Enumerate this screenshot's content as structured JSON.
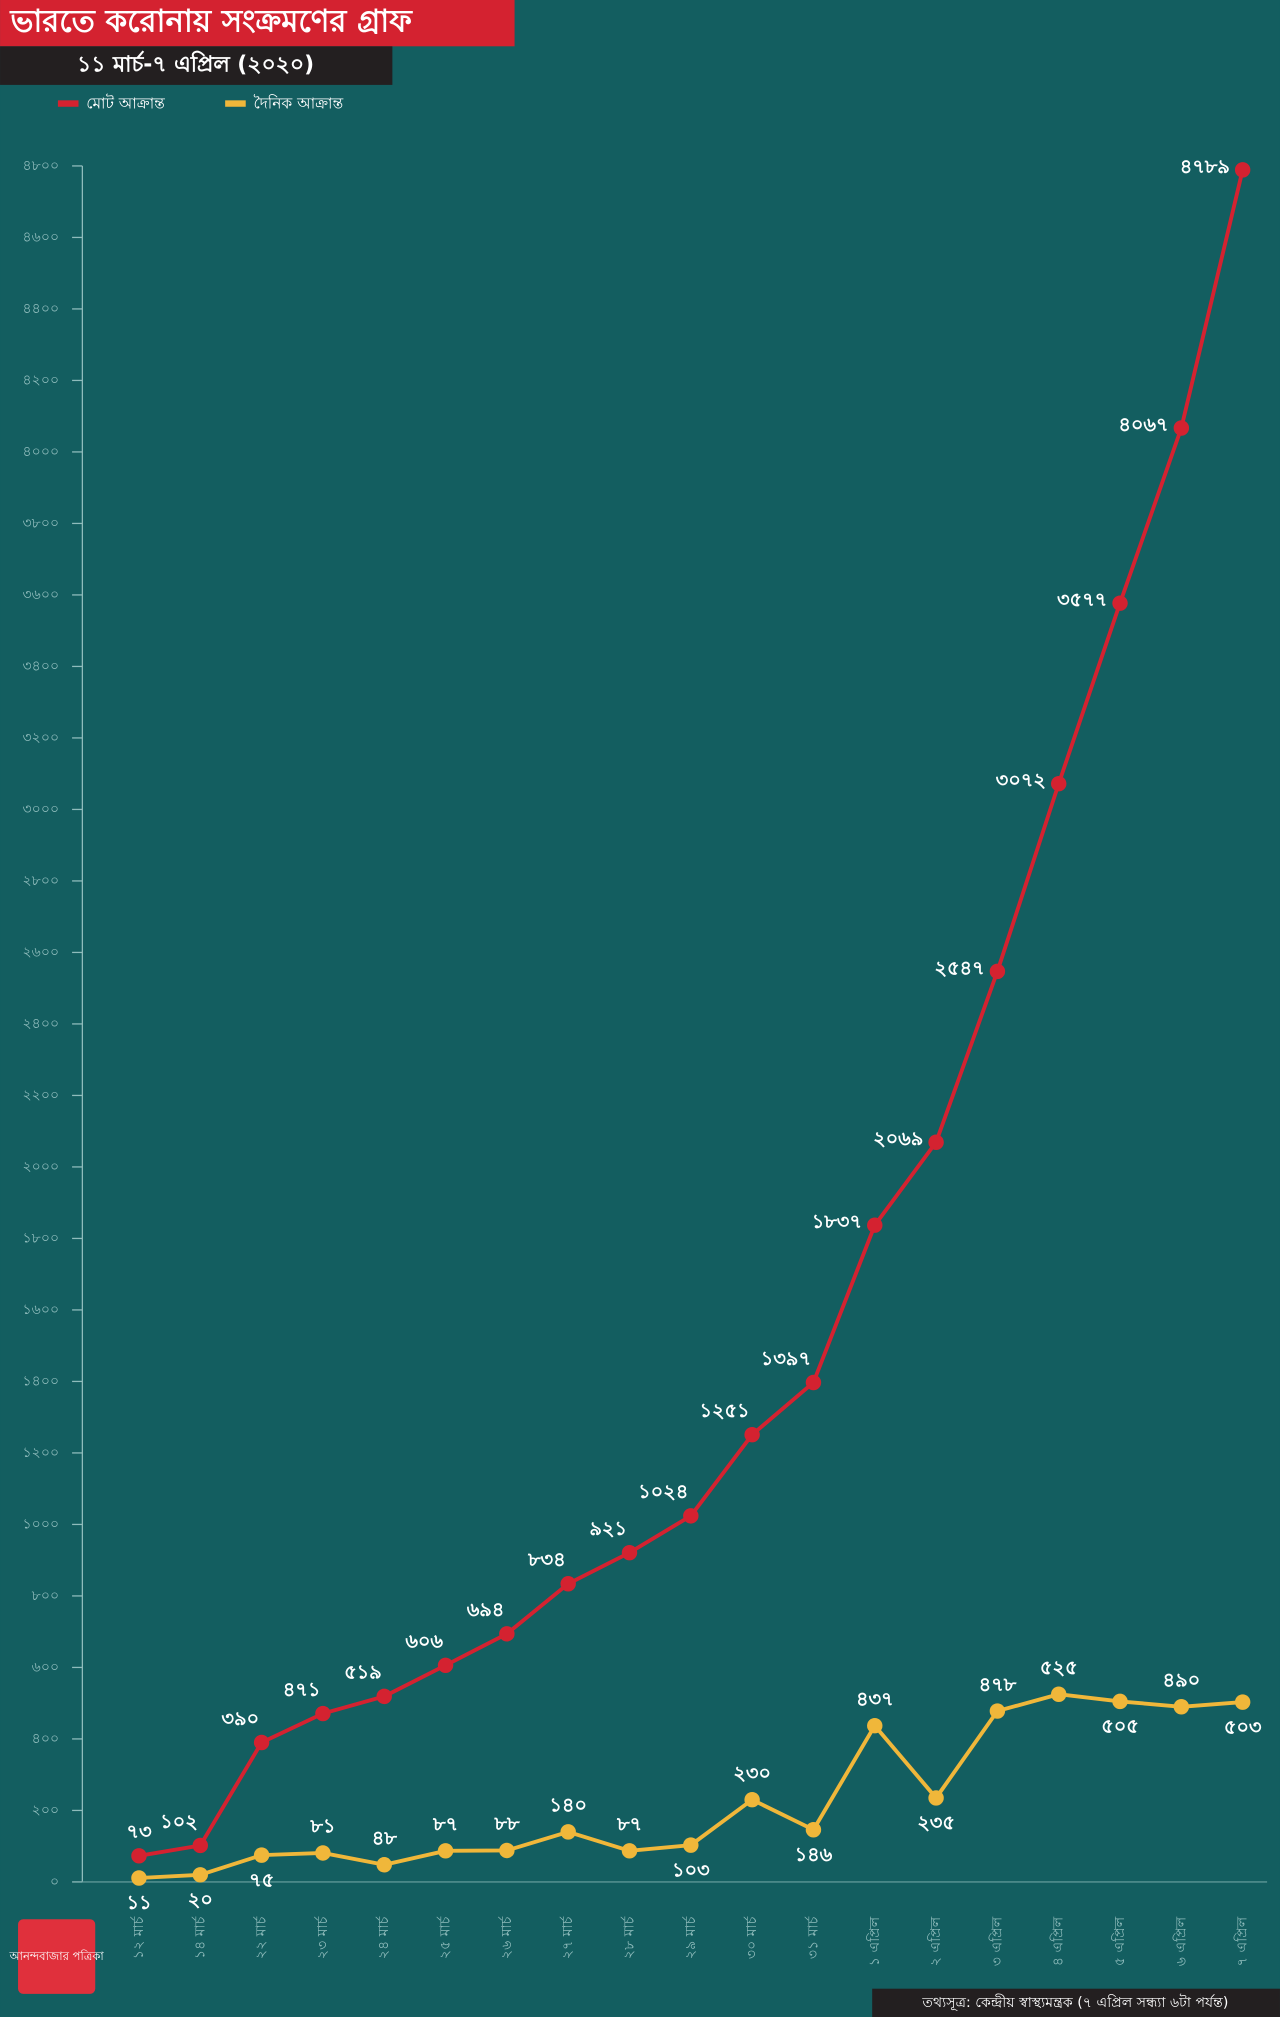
{
  "chart_data": {
    "type": "line",
    "title": "ভারতে করোনায় সংক্রমণের গ্রাফ",
    "subtitle": "১১ মার্চ-৭ এপ্রিল (২০২০)",
    "source": "তথ্যসূত্র: কেন্দ্রীয় স্বাস্থ্যমন্ত্রক (৭ এপ্রিল সন্ধ্যা ৬টা পর্যন্ত)",
    "logo": "আনন্দবাজার পত্রিকা",
    "categories": [
      "১২ মার্চ",
      "১৪ মার্চ",
      "২২ মার্চ",
      "২৩ মার্চ",
      "২৪ মার্চ",
      "২৫ মার্চ",
      "২৬ মার্চ",
      "২৭ মার্চ",
      "২৮ মার্চ",
      "২৯ মার্চ",
      "৩০ মার্চ",
      "৩১ মার্চ",
      "১ এপ্রিল",
      "২ এপ্রিল",
      "৩ এপ্রিল",
      "৪ এপ্রিল",
      "৫ এপ্রিল",
      "৬ এপ্রিল",
      "৭ এপ্রিল"
    ],
    "series": [
      {
        "name": "মোট আক্রান্ত",
        "color": "#d42230",
        "values": [
          73,
          102,
          390,
          471,
          519,
          606,
          694,
          834,
          921,
          1024,
          1251,
          1397,
          1837,
          2069,
          2547,
          3072,
          3577,
          4067,
          4789
        ],
        "value_labels": [
          "৭৩",
          "১০২",
          "৩৯০",
          "৪৭১",
          "৫১৯",
          "৬০৬",
          "৬৯৪",
          "৮৩৪",
          "৯২১",
          "১০২৪",
          "১২৫১",
          "১৩৯৭",
          "১৮৩৭",
          "২০৬৯",
          "২৫৪৭",
          "৩০৭২",
          "৩৫৭৭",
          "৪০৬৭",
          "৪৭৮৯"
        ]
      },
      {
        "name": "দৈনিক আক্রান্ত",
        "color": "#f0b73a",
        "values": [
          11,
          20,
          75,
          81,
          48,
          87,
          88,
          140,
          87,
          103,
          230,
          146,
          437,
          235,
          478,
          525,
          505,
          490,
          503
        ],
        "value_labels": [
          "১১",
          "২০",
          "৭৫",
          "৮১",
          "৪৮",
          "৮৭",
          "৮৮",
          "১৪০",
          "৮৭",
          "১০৩",
          "২৩০",
          "১৪৬",
          "৪৩৭",
          "২৩৫",
          "৪৭৮",
          "৫২৫",
          "৫০৫",
          "৪৯০",
          "৫০৩"
        ]
      }
    ],
    "ylim": [
      0,
      4800
    ],
    "yticks": [
      {
        "value": 0,
        "label": "০"
      },
      {
        "value": 200,
        "label": "২০০"
      },
      {
        "value": 400,
        "label": "৪০০"
      },
      {
        "value": 600,
        "label": "৬০০"
      },
      {
        "value": 800,
        "label": "৮০০"
      },
      {
        "value": 1000,
        "label": "১০০০"
      },
      {
        "value": 1200,
        "label": "১২০০"
      },
      {
        "value": 1400,
        "label": "১৪০০"
      },
      {
        "value": 1600,
        "label": "১৬০০"
      },
      {
        "value": 1800,
        "label": "১৮০০"
      },
      {
        "value": 2000,
        "label": "২০০০"
      },
      {
        "value": 2200,
        "label": "২২০০"
      },
      {
        "value": 2400,
        "label": "২৪০০"
      },
      {
        "value": 2600,
        "label": "২৬০০"
      },
      {
        "value": 2800,
        "label": "২৮০০"
      },
      {
        "value": 3000,
        "label": "৩০০০"
      },
      {
        "value": 3200,
        "label": "৩২০০"
      },
      {
        "value": 3400,
        "label": "৩৪০০"
      },
      {
        "value": 3600,
        "label": "৩৬০০"
      },
      {
        "value": 3800,
        "label": "৩৮০০"
      },
      {
        "value": 4000,
        "label": "৪০০০"
      },
      {
        "value": 4200,
        "label": "৪২০০"
      },
      {
        "value": 4400,
        "label": "৪৪০০"
      },
      {
        "value": 4600,
        "label": "৪৬০০"
      },
      {
        "value": 4800,
        "label": "৪৮০০"
      }
    ]
  }
}
